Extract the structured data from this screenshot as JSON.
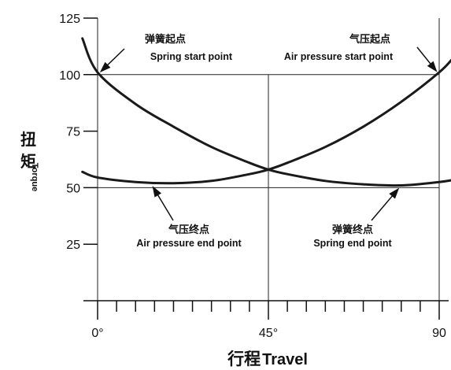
{
  "chart_data": {
    "type": "line",
    "title": "",
    "xlabel_cn": "行程",
    "xlabel_en": "Travel",
    "ylabel_cn": "扭矩",
    "ylabel_en": "Torque",
    "xlim": [
      0,
      90
    ],
    "ylim": [
      0,
      125
    ],
    "x_ticks": [
      {
        "value": 0,
        "label": "0°"
      },
      {
        "value": 45,
        "label": "45°"
      },
      {
        "value": 90,
        "label": "90"
      }
    ],
    "x_minor_ticks": [
      5,
      10,
      15,
      20,
      25,
      30,
      35,
      40,
      50,
      55,
      60,
      65,
      70,
      75,
      80,
      85
    ],
    "y_ticks": [
      {
        "value": 25,
        "label": "25"
      },
      {
        "value": 50,
        "label": "50"
      },
      {
        "value": 75,
        "label": "75"
      },
      {
        "value": 100,
        "label": "100"
      },
      {
        "value": 125,
        "label": "125"
      }
    ],
    "grid_lines": {
      "horizontal": [
        50,
        100
      ],
      "vertical": [
        0,
        45,
        90
      ]
    },
    "series": [
      {
        "x": [
          -4,
          0,
          10,
          20,
          30,
          40,
          45,
          50,
          60,
          70,
          80,
          90,
          94
        ],
        "y": [
          116,
          101,
          87,
          77,
          68,
          61,
          58,
          56,
          53,
          51.5,
          51,
          52.5,
          53.5
        ]
      },
      {
        "x": [
          -4,
          0,
          10,
          20,
          30,
          40,
          45,
          50,
          60,
          70,
          80,
          90,
          94
        ],
        "y": [
          57,
          54.5,
          52.5,
          52,
          53,
          56,
          58,
          61,
          68,
          77,
          88,
          101,
          108
        ]
      }
    ],
    "annotations": [
      {
        "cn": "弹簧起点",
        "en": "Spring start point",
        "point": [
          0,
          100
        ]
      },
      {
        "cn": "气压起点",
        "en": "Air pressure start point",
        "point": [
          90,
          100
        ]
      },
      {
        "cn": "气压终点",
        "en": "Air pressure end point",
        "point": [
          14,
          52
        ]
      },
      {
        "cn": "弹簧终点",
        "en": "Spring end point",
        "point": [
          80,
          51
        ]
      }
    ]
  }
}
